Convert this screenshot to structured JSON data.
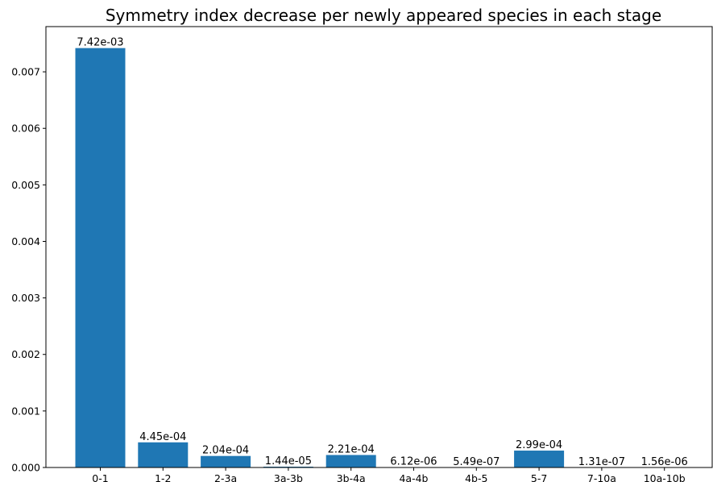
{
  "chart_data": {
    "type": "bar",
    "title": "Symmetry index decrease per newly appeared species in each stage",
    "xlabel": "",
    "ylabel": "",
    "categories": [
      "0-1",
      "1-2",
      "2-3a",
      "3a-3b",
      "3b-4a",
      "4a-4b",
      "4b-5",
      "5-7",
      "7-10a",
      "10a-10b"
    ],
    "values": [
      0.00742,
      0.000445,
      0.000204,
      1.44e-05,
      0.000221,
      6.12e-06,
      5.49e-07,
      0.000299,
      1.31e-07,
      1.56e-06
    ],
    "value_labels": [
      "7.42e-03",
      "4.45e-04",
      "2.04e-04",
      "1.44e-05",
      "2.21e-04",
      "6.12e-06",
      "5.49e-07",
      "2.99e-04",
      "1.31e-07",
      "1.56e-06"
    ],
    "ylim": [
      0,
      0.0078
    ],
    "yticks": [
      0.0,
      0.001,
      0.002,
      0.003,
      0.004,
      0.005,
      0.006,
      0.007
    ],
    "ytick_labels": [
      "0.000",
      "0.001",
      "0.002",
      "0.003",
      "0.004",
      "0.005",
      "0.006",
      "0.007"
    ],
    "bar_color": "#1f77b4",
    "grid": false,
    "legend": "none"
  }
}
